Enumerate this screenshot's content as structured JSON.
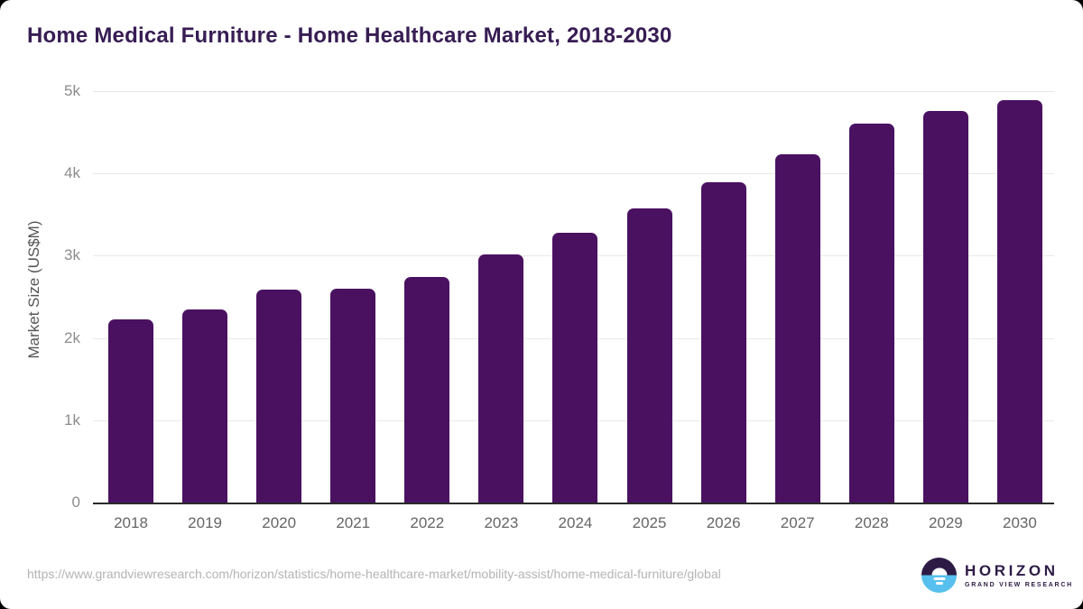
{
  "page": {
    "title": "Home Medical Furniture - Home Healthcare Market, 2018-2030",
    "source_url": "https://www.grandviewresearch.com/horizon/statistics/home-healthcare-market/mobility-assist/home-medical-furniture/global"
  },
  "logo": {
    "name": "HORIZON",
    "subtitle": "GRAND VIEW RESEARCH"
  },
  "chart_data": {
    "type": "bar",
    "title": "Home Medical Furniture - Home Healthcare Market, 2018-2030",
    "categories": [
      "2018",
      "2019",
      "2020",
      "2021",
      "2022",
      "2023",
      "2024",
      "2025",
      "2026",
      "2027",
      "2028",
      "2029",
      "2030"
    ],
    "values": [
      2230,
      2350,
      2590,
      2600,
      2740,
      3020,
      3280,
      3570,
      3890,
      4230,
      4610,
      4760,
      4890
    ],
    "xlabel": "",
    "ylabel": "Market Size (US$M)",
    "ylim": [
      0,
      5000
    ],
    "yticks": [
      {
        "value": 0,
        "label": "0"
      },
      {
        "value": 1000,
        "label": "1k"
      },
      {
        "value": 2000,
        "label": "2k"
      },
      {
        "value": 3000,
        "label": "3k"
      },
      {
        "value": 4000,
        "label": "4k"
      },
      {
        "value": 5000,
        "label": "5k"
      }
    ],
    "grid": true,
    "legend": false,
    "bar_color": "#4a1161"
  },
  "colors": {
    "title": "#371d53",
    "bar": "#4a1161",
    "gridline": "#e9e9e9",
    "axis_line": "#2b2b2b",
    "y_tick_text": "#8c8c8c",
    "x_tick_text": "#666666",
    "source_text": "#b4b4b4",
    "logo_dark": "#2d1b45",
    "logo_blue": "#57c0ee"
  }
}
